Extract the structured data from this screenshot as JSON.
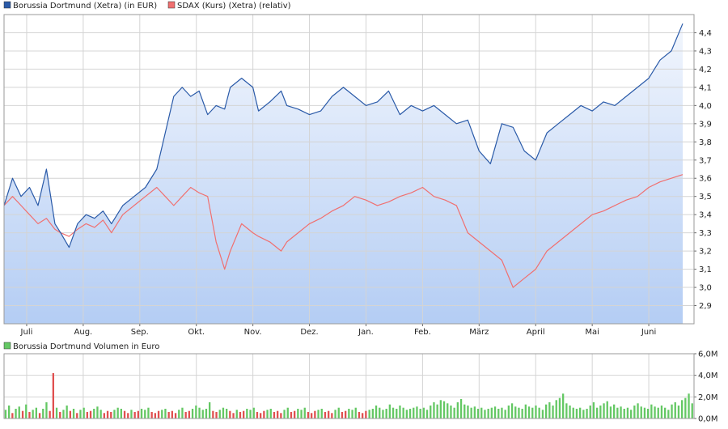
{
  "chart_data": [
    {
      "type": "line",
      "legend": [
        {
          "label": "Borussia Dortmund (Xetra) (in EUR)",
          "color": "#2a5aa8"
        },
        {
          "label": "SDAX (Kurs) (Xetra) (relativ)",
          "color": "#f07070"
        }
      ],
      "xaxis": {
        "ticks": [
          "Juli",
          "Aug.",
          "Sep.",
          "Okt.",
          "Nov.",
          "Dez.",
          "Jan.",
          "Feb.",
          "März",
          "April",
          "Mai",
          "Juni"
        ]
      },
      "yaxis": {
        "ticks": [
          "2,9",
          "3,0",
          "3,1",
          "3,2",
          "3,3",
          "3,4",
          "3,5",
          "3,6",
          "3,7",
          "3,8",
          "3,9",
          "4,0",
          "4,1",
          "4,2",
          "4,3",
          "4,4"
        ],
        "range": [
          2.8,
          4.5
        ]
      },
      "grid": true,
      "legend_position": "top-left",
      "series": [
        {
          "name": "Borussia Dortmund (Xetra) (in EUR)",
          "color": "#2a5aa8",
          "points": [
            [
              0,
              3.45
            ],
            [
              0.15,
              3.6
            ],
            [
              0.3,
              3.5
            ],
            [
              0.45,
              3.55
            ],
            [
              0.6,
              3.45
            ],
            [
              0.75,
              3.65
            ],
            [
              0.9,
              3.35
            ],
            [
              1.0,
              3.3
            ],
            [
              1.15,
              3.22
            ],
            [
              1.3,
              3.35
            ],
            [
              1.45,
              3.4
            ],
            [
              1.6,
              3.38
            ],
            [
              1.75,
              3.42
            ],
            [
              1.9,
              3.35
            ],
            [
              2.0,
              3.4
            ],
            [
              2.1,
              3.45
            ],
            [
              2.3,
              3.5
            ],
            [
              2.5,
              3.55
            ],
            [
              2.7,
              3.65
            ],
            [
              2.85,
              3.85
            ],
            [
              3.0,
              4.05
            ],
            [
              3.15,
              4.1
            ],
            [
              3.3,
              4.05
            ],
            [
              3.45,
              4.08
            ],
            [
              3.6,
              3.95
            ],
            [
              3.75,
              4.0
            ],
            [
              3.9,
              3.98
            ],
            [
              4.0,
              4.1
            ],
            [
              4.2,
              4.15
            ],
            [
              4.4,
              4.1
            ],
            [
              4.5,
              3.97
            ],
            [
              4.7,
              4.02
            ],
            [
              4.9,
              4.08
            ],
            [
              5.0,
              4.0
            ],
            [
              5.2,
              3.98
            ],
            [
              5.4,
              3.95
            ],
            [
              5.6,
              3.97
            ],
            [
              5.8,
              4.05
            ],
            [
              6.0,
              4.1
            ],
            [
              6.2,
              4.05
            ],
            [
              6.4,
              4.0
            ],
            [
              6.6,
              4.02
            ],
            [
              6.8,
              4.08
            ],
            [
              7.0,
              3.95
            ],
            [
              7.2,
              4.0
            ],
            [
              7.4,
              3.97
            ],
            [
              7.6,
              4.0
            ],
            [
              7.8,
              3.95
            ],
            [
              8.0,
              3.9
            ],
            [
              8.2,
              3.92
            ],
            [
              8.4,
              3.75
            ],
            [
              8.6,
              3.68
            ],
            [
              8.8,
              3.9
            ],
            [
              9.0,
              3.88
            ],
            [
              9.2,
              3.75
            ],
            [
              9.4,
              3.7
            ],
            [
              9.6,
              3.85
            ],
            [
              9.8,
              3.9
            ],
            [
              10.0,
              3.95
            ],
            [
              10.2,
              4.0
            ],
            [
              10.4,
              3.97
            ],
            [
              10.6,
              4.02
            ],
            [
              10.8,
              4.0
            ],
            [
              11.0,
              4.05
            ],
            [
              11.2,
              4.1
            ],
            [
              11.4,
              4.15
            ],
            [
              11.6,
              4.25
            ],
            [
              11.8,
              4.3
            ],
            [
              12.0,
              4.45
            ]
          ]
        },
        {
          "name": "SDAX (Kurs) (Xetra) (relativ)",
          "color": "#f07070",
          "points": [
            [
              0,
              3.45
            ],
            [
              0.15,
              3.5
            ],
            [
              0.3,
              3.45
            ],
            [
              0.45,
              3.4
            ],
            [
              0.6,
              3.35
            ],
            [
              0.75,
              3.38
            ],
            [
              0.9,
              3.32
            ],
            [
              1.0,
              3.3
            ],
            [
              1.15,
              3.28
            ],
            [
              1.3,
              3.32
            ],
            [
              1.45,
              3.35
            ],
            [
              1.6,
              3.33
            ],
            [
              1.75,
              3.37
            ],
            [
              1.9,
              3.3
            ],
            [
              2.0,
              3.35
            ],
            [
              2.1,
              3.4
            ],
            [
              2.3,
              3.45
            ],
            [
              2.5,
              3.5
            ],
            [
              2.7,
              3.55
            ],
            [
              2.85,
              3.5
            ],
            [
              3.0,
              3.45
            ],
            [
              3.15,
              3.5
            ],
            [
              3.3,
              3.55
            ],
            [
              3.45,
              3.52
            ],
            [
              3.6,
              3.5
            ],
            [
              3.75,
              3.25
            ],
            [
              3.9,
              3.1
            ],
            [
              4.0,
              3.2
            ],
            [
              4.2,
              3.35
            ],
            [
              4.4,
              3.3
            ],
            [
              4.5,
              3.28
            ],
            [
              4.7,
              3.25
            ],
            [
              4.9,
              3.2
            ],
            [
              5.0,
              3.25
            ],
            [
              5.2,
              3.3
            ],
            [
              5.4,
              3.35
            ],
            [
              5.6,
              3.38
            ],
            [
              5.8,
              3.42
            ],
            [
              6.0,
              3.45
            ],
            [
              6.2,
              3.5
            ],
            [
              6.4,
              3.48
            ],
            [
              6.6,
              3.45
            ],
            [
              6.8,
              3.47
            ],
            [
              7.0,
              3.5
            ],
            [
              7.2,
              3.52
            ],
            [
              7.4,
              3.55
            ],
            [
              7.6,
              3.5
            ],
            [
              7.8,
              3.48
            ],
            [
              8.0,
              3.45
            ],
            [
              8.2,
              3.3
            ],
            [
              8.4,
              3.25
            ],
            [
              8.6,
              3.2
            ],
            [
              8.8,
              3.15
            ],
            [
              9.0,
              3.0
            ],
            [
              9.2,
              3.05
            ],
            [
              9.4,
              3.1
            ],
            [
              9.6,
              3.2
            ],
            [
              9.8,
              3.25
            ],
            [
              10.0,
              3.3
            ],
            [
              10.2,
              3.35
            ],
            [
              10.4,
              3.4
            ],
            [
              10.6,
              3.42
            ],
            [
              10.8,
              3.45
            ],
            [
              11.0,
              3.48
            ],
            [
              11.2,
              3.5
            ],
            [
              11.4,
              3.55
            ],
            [
              11.6,
              3.58
            ],
            [
              11.8,
              3.6
            ],
            [
              12.0,
              3.62
            ]
          ]
        }
      ]
    },
    {
      "type": "bar",
      "legend": [
        {
          "label": "Borussia Dortmund Volumen in Euro",
          "color": "#64c864"
        }
      ],
      "yaxis": {
        "ticks": [
          "0,0M",
          "2,0M",
          "4,0M",
          "6,0M"
        ],
        "range": [
          0,
          6
        ]
      },
      "grid": true,
      "legend_position": "top-left",
      "colors": {
        "up": "#64c864",
        "down": "#e05050"
      },
      "values": [
        0.8,
        1.2,
        0.5,
        0.9,
        1.1,
        0.7,
        1.3,
        0.6,
        0.8,
        1.0,
        0.5,
        0.9,
        1.5,
        0.7,
        4.2,
        1.0,
        0.6,
        0.8,
        1.2,
        0.7,
        0.9,
        0.5,
        0.8,
        1.0,
        0.6,
        0.7,
        0.9,
        1.1,
        0.8,
        0.5,
        0.7,
        0.6,
        0.8,
        1.0,
        0.9,
        0.7,
        0.5,
        0.8,
        0.6,
        0.7,
        0.9,
        0.8,
        1.0,
        0.6,
        0.5,
        0.7,
        0.8,
        0.9,
        0.6,
        0.7,
        0.5,
        0.8,
        1.0,
        0.6,
        0.7,
        0.9,
        1.2,
        1.0,
        0.8,
        0.9,
        1.5,
        0.7,
        0.6,
        0.8,
        1.0,
        0.9,
        0.7,
        0.5,
        0.8,
        0.6,
        0.7,
        0.9,
        0.8,
        1.0,
        0.6,
        0.5,
        0.7,
        0.8,
        0.9,
        0.6,
        0.7,
        0.5,
        0.8,
        1.0,
        0.6,
        0.7,
        0.9,
        0.8,
        1.0,
        0.6,
        0.5,
        0.7,
        0.8,
        0.9,
        0.6,
        0.7,
        0.5,
        0.8,
        1.0,
        0.6,
        0.7,
        0.9,
        0.8,
        1.0,
        0.6,
        0.5,
        0.7,
        0.8,
        0.9,
        1.2,
        1.0,
        0.8,
        0.9,
        1.3,
        1.0,
        0.9,
        1.2,
        1.0,
        0.8,
        0.9,
        1.0,
        1.1,
        0.9,
        1.0,
        0.8,
        1.2,
        1.5,
        1.3,
        1.7,
        1.6,
        1.4,
        1.2,
        1.0,
        1.5,
        1.8,
        1.3,
        1.2,
        1.0,
        1.1,
        0.9,
        1.0,
        0.8,
        0.9,
        1.0,
        1.1,
        0.9,
        1.0,
        0.8,
        1.2,
        1.4,
        1.1,
        1.0,
        0.9,
        1.3,
        1.1,
        1.0,
        1.2,
        1.0,
        0.8,
        1.3,
        1.5,
        1.2,
        1.7,
        1.9,
        2.3,
        1.4,
        1.2,
        1.0,
        0.9,
        1.0,
        0.8,
        0.9,
        1.2,
        1.5,
        1.0,
        1.2,
        1.4,
        1.6,
        1.1,
        1.3,
        1.0,
        1.1,
        0.9,
        1.0,
        0.8,
        1.2,
        1.4,
        1.1,
        1.0,
        0.9,
        1.3,
        1.1,
        1.0,
        1.2,
        1.0,
        0.8,
        1.3,
        1.5,
        1.2,
        1.7,
        1.9,
        2.3,
        1.4
      ],
      "directions": [
        "up",
        "up",
        "down",
        "up",
        "up",
        "down",
        "up",
        "down",
        "up",
        "up",
        "down",
        "up",
        "up",
        "down",
        "down",
        "up",
        "down",
        "up",
        "up",
        "down",
        "up",
        "down",
        "up",
        "up",
        "down",
        "down",
        "up",
        "up",
        "up",
        "down",
        "down",
        "down",
        "up",
        "up",
        "up",
        "down",
        "down",
        "up",
        "down",
        "down",
        "up",
        "up",
        "up",
        "down",
        "down",
        "down",
        "up",
        "up",
        "down",
        "down",
        "down",
        "up",
        "up",
        "down",
        "down",
        "up",
        "up",
        "up",
        "up",
        "up",
        "up",
        "down",
        "down",
        "up",
        "up",
        "up",
        "down",
        "down",
        "up",
        "down",
        "down",
        "up",
        "up",
        "up",
        "down",
        "down",
        "down",
        "up",
        "up",
        "down",
        "down",
        "down",
        "up",
        "up",
        "down",
        "down",
        "up",
        "up",
        "up",
        "down",
        "down",
        "down",
        "up",
        "up",
        "down",
        "down",
        "down",
        "up",
        "up",
        "down",
        "down",
        "up",
        "up",
        "up",
        "down",
        "down",
        "down",
        "up",
        "up",
        "up",
        "up",
        "up",
        "up",
        "up",
        "up",
        "up",
        "up",
        "up",
        "up",
        "up",
        "up",
        "up",
        "up",
        "up",
        "up",
        "up",
        "up",
        "up",
        "up",
        "up",
        "up",
        "up",
        "up",
        "up",
        "up",
        "up",
        "up",
        "up",
        "up",
        "up",
        "up",
        "up",
        "up",
        "up",
        "up",
        "up",
        "up",
        "up",
        "up",
        "up",
        "up",
        "up",
        "up",
        "up",
        "up",
        "up",
        "up",
        "up",
        "up",
        "up",
        "up",
        "up",
        "up",
        "up",
        "up",
        "up",
        "up",
        "up",
        "up",
        "up",
        "up",
        "up",
        "up",
        "up",
        "up",
        "up",
        "up",
        "up",
        "up",
        "up",
        "up",
        "up",
        "up",
        "up",
        "up",
        "up",
        "up",
        "up",
        "up",
        "up",
        "up",
        "up",
        "up",
        "up",
        "up",
        "up",
        "up",
        "up",
        "up",
        "up",
        "up",
        "up",
        "up",
        "up",
        "up",
        "up",
        "up"
      ]
    }
  ]
}
